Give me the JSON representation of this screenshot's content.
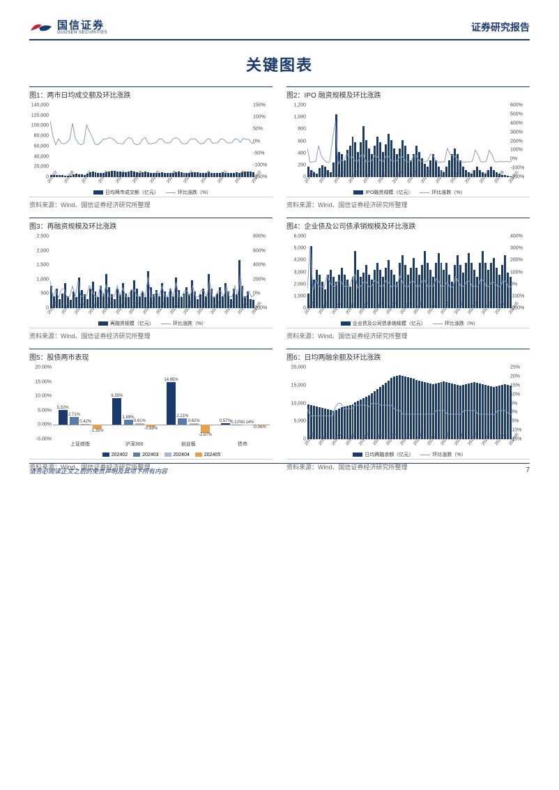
{
  "header": {
    "logo_cn": "国信证券",
    "logo_en": "GUOSEN SECURITIES",
    "report_type": "证券研究报告"
  },
  "page_title": "关键图表",
  "source_text": "资料来源：Wind、国信证券经济研究所整理",
  "footer": {
    "disclaimer": "请务必阅读正文之后的免责声明及其项下所有内容",
    "page_number": "7"
  },
  "colors": {
    "brand": "#1a3a6e",
    "line": "#8a9bb8",
    "bar_202402": "#1a3a6e",
    "bar_202403": "#5a7aa8",
    "bar_202404": "#a8b8d0",
    "bar_202405": "#e8a050"
  },
  "chart1": {
    "title": "图1：两市日均成交额及环比涨跌",
    "legend_bar": "日均两市成交额（亿元）",
    "legend_line": "环比涨跌（%）",
    "yl_ticks": [
      0,
      20000,
      40000,
      60000,
      80000,
      100000,
      120000,
      140000
    ],
    "yl_labels": [
      "0",
      "20,000",
      "40,000",
      "60,000",
      "80,000",
      "100,000",
      "120,000",
      "140,000"
    ],
    "yr_ticks": [
      -150,
      -100,
      -50,
      0,
      50,
      100,
      150
    ],
    "yr_labels": [
      "-150%",
      "-100%",
      "-50%",
      "0%",
      "50%",
      "100%",
      "150%"
    ],
    "x_labels": [
      "201802",
      "201808",
      "201902",
      "201908",
      "202002",
      "202008",
      "202102",
      "202108",
      "202202",
      "202208",
      "202302",
      "202308",
      "202402"
    ],
    "bars": [
      4200,
      4100,
      3900,
      3800,
      3500,
      3200,
      3000,
      3200,
      5800,
      6200,
      5500,
      4800,
      4200,
      7200,
      9800,
      11200,
      9500,
      8200,
      7800,
      8500,
      9200,
      10500,
      11800,
      12200,
      11500,
      10800,
      9800,
      10200,
      11500,
      12800,
      11200,
      9800,
      8500,
      9200,
      10500,
      9800,
      8800,
      8200,
      7800,
      8500,
      9200,
      8800,
      8200,
      7800,
      8500,
      9800,
      10500,
      9800,
      8800,
      8200,
      8800,
      9500,
      10200,
      9800,
      8800,
      8200,
      8800,
      9500,
      8800,
      8200,
      7800,
      8500,
      9200,
      8800,
      8200,
      7800,
      8500,
      9200,
      8800,
      9800,
      10500,
      11200,
      10500,
      9800
    ],
    "line": [
      85,
      20,
      -15,
      10,
      -8,
      -12,
      -5,
      8,
      75,
      12,
      -8,
      -15,
      -10,
      68,
      42,
      18,
      -12,
      -15,
      -5,
      10,
      8,
      15,
      12,
      5,
      -8,
      -10,
      -12,
      5,
      15,
      12,
      -10,
      -15,
      -12,
      8,
      15,
      -8,
      -12,
      -8,
      -5,
      10,
      8,
      -5,
      -8,
      -5,
      10,
      15,
      8,
      -8,
      -12,
      -8,
      8,
      10,
      8,
      -5,
      -12,
      -8,
      8,
      10,
      -8,
      -8,
      -5,
      10,
      8,
      -5,
      -8,
      -5,
      10,
      8,
      -5,
      12,
      8,
      8,
      -8,
      -8
    ]
  },
  "chart2": {
    "title": "图2：IPO 融资规模及环比涨跌",
    "legend_bar": "IPO融资规模（亿元）",
    "legend_line": "环比涨跌（%）",
    "yl_ticks": [
      0,
      200,
      400,
      600,
      800,
      1000,
      1200
    ],
    "yl_labels": [
      "0",
      "200",
      "400",
      "600",
      "800",
      "1,000",
      "1,200"
    ],
    "yr_ticks": [
      -200,
      -100,
      0,
      100,
      200,
      300,
      400,
      500,
      600
    ],
    "yr_labels": [
      "-200%",
      "-100%",
      "0%",
      "100%",
      "200%",
      "300%",
      "400%",
      "500%",
      "600%"
    ],
    "x_labels": [
      "201803",
      "201808",
      "201901",
      "201907",
      "201911",
      "202004",
      "202009",
      "202102",
      "202107",
      "202112",
      "202205",
      "202210",
      "202303",
      "202308",
      "202401"
    ],
    "bars": [
      180,
      120,
      80,
      60,
      150,
      200,
      180,
      120,
      80,
      250,
      1050,
      420,
      380,
      280,
      450,
      520,
      680,
      580,
      420,
      580,
      850,
      620,
      480,
      380,
      520,
      680,
      580,
      420,
      550,
      720,
      620,
      480,
      380,
      480,
      620,
      520,
      380,
      280,
      380,
      520,
      420,
      320,
      220,
      180,
      280,
      380,
      280,
      180,
      120,
      80,
      180,
      280,
      380,
      480,
      380,
      280,
      180,
      120,
      80,
      60,
      120,
      180,
      120,
      80,
      60,
      120,
      180,
      120,
      80,
      60,
      40,
      30,
      20,
      15
    ],
    "line": [
      120,
      -35,
      -30,
      -25,
      150,
      35,
      -10,
      -35,
      -30,
      220,
      420,
      -55,
      -10,
      -25,
      60,
      18,
      30,
      -15,
      -28,
      40,
      48,
      -28,
      -22,
      -20,
      38,
      30,
      -15,
      -28,
      30,
      32,
      -15,
      -22,
      -20,
      25,
      30,
      -15,
      -28,
      -25,
      35,
      38,
      -20,
      -25,
      -30,
      -18,
      55,
      38,
      -25,
      -35,
      -30,
      -30,
      120,
      55,
      35,
      25,
      -20,
      -25,
      -35,
      -30,
      -30,
      -25,
      100,
      50,
      -30,
      -30,
      -25,
      100,
      50,
      -30,
      -30,
      -25,
      -30,
      -25,
      -30,
      -25
    ]
  },
  "chart3": {
    "title": "图3：再融资规模及环比涨跌",
    "legend_bar": "再融资规模（亿元）",
    "legend_line": "环比涨跌（%）",
    "yl_ticks": [
      0,
      500,
      1000,
      1500,
      2000,
      2500
    ],
    "yl_labels": [
      "0",
      "500",
      "1,000",
      "1,500",
      "2,000",
      "2,500"
    ],
    "yr_ticks": [
      -200,
      0,
      200,
      400,
      600,
      800
    ],
    "yr_labels": [
      "-200%",
      "0%",
      "200%",
      "400%",
      "600%",
      "800%"
    ],
    "x_labels": [
      "201802",
      "201807",
      "201812",
      "201905",
      "201910",
      "202003",
      "202008",
      "202101",
      "202106",
      "202111",
      "202204",
      "202209",
      "202302",
      "202307",
      "202312",
      "202405"
    ],
    "bars": [
      780,
      420,
      680,
      320,
      520,
      880,
      420,
      280,
      580,
      380,
      1080,
      620,
      480,
      320,
      680,
      920,
      580,
      380,
      780,
      520,
      1180,
      720,
      480,
      320,
      680,
      480,
      880,
      520,
      380,
      620,
      980,
      680,
      420,
      580,
      380,
      1280,
      720,
      480,
      620,
      420,
      880,
      580,
      380,
      680,
      420,
      1080,
      620,
      380,
      520,
      720,
      480,
      980,
      580,
      320,
      480,
      680,
      420,
      1180,
      680,
      380,
      520,
      720,
      420,
      880,
      580,
      320,
      680,
      480,
      1680,
      780,
      420,
      580,
      320,
      280
    ],
    "line": [
      180,
      -45,
      62,
      -52,
      62,
      68,
      -52,
      -32,
      105,
      -35,
      185,
      -42,
      -22,
      -32,
      112,
      38,
      -38,
      -35,
      105,
      -32,
      128,
      -38,
      -32,
      -32,
      112,
      -28,
      82,
      -40,
      -28,
      62,
      58,
      -30,
      -38,
      38,
      -35,
      238,
      -42,
      -32,
      28,
      -32,
      108,
      -34,
      -35,
      78,
      -38,
      158,
      -42,
      -38,
      38,
      38,
      -32,
      105,
      -40,
      -44,
      48,
      42,
      -38,
      182,
      -42,
      -44,
      38,
      38,
      -42,
      108,
      -34,
      -44,
      112,
      -28,
      252,
      -54,
      -46,
      38,
      -44,
      -15
    ]
  },
  "chart4": {
    "title": "图4：企业债及公司债承销规模及环比涨跌",
    "legend_bar": "企业债及公司债承销规模（亿元）",
    "legend_line": "环比涨跌（%）",
    "yl_ticks": [
      0,
      1000,
      2000,
      3000,
      4000,
      5000,
      6000
    ],
    "yl_labels": [
      "0",
      "1,000",
      "2,000",
      "3,000",
      "4,000",
      "5,000",
      "6,000"
    ],
    "yr_ticks": [
      -200,
      -100,
      0,
      100,
      200,
      300,
      400
    ],
    "yr_labels": [
      "-200%",
      "-100%",
      "0%",
      "100%",
      "200%",
      "300%",
      "400%"
    ],
    "x_labels": [
      "201802",
      "201807",
      "201812",
      "201905",
      "201910",
      "202003",
      "202008",
      "202101",
      "202106",
      "202111",
      "202204",
      "202209",
      "202302",
      "202307",
      "202312",
      "202405"
    ],
    "bars": [
      1200,
      5200,
      2400,
      3200,
      2800,
      2200,
      1600,
      2800,
      3200,
      2600,
      2200,
      2800,
      3400,
      2800,
      2400,
      1800,
      2600,
      4800,
      3200,
      2600,
      3000,
      3600,
      2800,
      2400,
      3200,
      3800,
      3200,
      2600,
      3400,
      4000,
      3200,
      2800,
      2200,
      3800,
      4400,
      3600,
      2800,
      3400,
      4200,
      3400,
      2800,
      3600,
      4800,
      3800,
      3200,
      2600,
      3800,
      4600,
      3800,
      3200,
      3800,
      2800,
      2200,
      3600,
      4400,
      3600,
      3000,
      3800,
      4600,
      3800,
      3200,
      2600,
      3800,
      4800,
      3800,
      3200,
      3800,
      4200,
      3400,
      2800,
      3600,
      4400,
      3000,
      2600
    ],
    "line": [
      -40,
      320,
      -52,
      32,
      -12,
      -20,
      -28,
      75,
      15,
      -18,
      -15,
      28,
      22,
      -18,
      -15,
      -25,
      45,
      82,
      -32,
      -18,
      15,
      20,
      -22,
      -15,
      32,
      18,
      -15,
      -18,
      30,
      18,
      -20,
      -12,
      -22,
      72,
      15,
      -18,
      -22,
      22,
      25,
      -18,
      -18,
      28,
      32,
      -20,
      -15,
      -18,
      45,
      22,
      -18,
      -15,
      18,
      -25,
      -22,
      62,
      22,
      -18,
      -16,
      25,
      22,
      -18,
      -15,
      -18,
      45,
      28,
      -20,
      -15,
      18,
      12,
      -18,
      -18,
      28,
      22,
      -32,
      -15
    ]
  },
  "chart5": {
    "title": "图5：股债两市表现",
    "yl_ticks": [
      -5,
      0,
      5,
      10,
      15,
      20
    ],
    "yl_labels": [
      "-5.00%",
      "0.00%",
      "5.00%",
      "10.00%",
      "15.00%",
      "20.00%"
    ],
    "groups": [
      {
        "label": "上证综指",
        "vals": [
          5.32,
          2.71,
          0.42,
          -1.35
        ]
      },
      {
        "label": "沪深300",
        "vals": [
          9.35,
          1.89,
          0.61,
          -0.68
        ]
      },
      {
        "label": "创业板",
        "vals": [
          14.85,
          2.21,
          0.62,
          -2.87
        ]
      },
      {
        "label": "债市",
        "vals": [
          0.57,
          0.12,
          0.14,
          -0.06
        ]
      }
    ],
    "series": [
      "202402",
      "202403",
      "202404",
      "202405"
    ]
  },
  "chart6": {
    "title": "图6：日均两融余额及环比涨跌",
    "legend_bar": "日均两融余额（亿元）",
    "legend_line": "环比涨跌（%）",
    "yl_ticks": [
      0,
      5000,
      10000,
      15000,
      20000
    ],
    "yl_labels": [
      "0",
      "5,000",
      "10,000",
      "15,000",
      "20,000"
    ],
    "yr_ticks": [
      -15,
      -10,
      -5,
      0,
      5,
      10,
      15,
      20,
      25
    ],
    "yr_labels": [
      "-15%",
      "-10%",
      "-5%",
      "0%",
      "5%",
      "10%",
      "15%",
      "20%",
      "25%"
    ],
    "x_labels": [
      "201802",
      "201807",
      "201812",
      "201905",
      "201910",
      "202003",
      "202008",
      "202101",
      "202106",
      "202111",
      "202204",
      "202209",
      "202302",
      "202307",
      "202312",
      "202405"
    ],
    "bars": [
      9800,
      9600,
      9400,
      9200,
      9000,
      8800,
      8600,
      8400,
      8200,
      8000,
      8200,
      8600,
      9000,
      9200,
      9400,
      9600,
      9800,
      10200,
      10600,
      11000,
      11400,
      11800,
      12200,
      12800,
      13400,
      14000,
      14600,
      15200,
      15800,
      16400,
      17000,
      17400,
      17600,
      17800,
      17600,
      17400,
      17200,
      17000,
      16800,
      16600,
      16400,
      16200,
      16000,
      15800,
      15600,
      15400,
      15600,
      15800,
      16000,
      16200,
      16000,
      15800,
      15600,
      15400,
      15200,
      15000,
      15200,
      15400,
      15600,
      15800,
      16000,
      15800,
      15600,
      15400,
      15200,
      15000,
      14800,
      14600,
      14800,
      15000,
      15200,
      15400,
      15200,
      15000
    ],
    "line": [
      2,
      -2,
      -2,
      -2,
      -2,
      -2,
      -2,
      -2,
      -2,
      -2,
      3,
      5,
      5,
      2,
      2,
      2,
      2,
      4,
      4,
      4,
      4,
      4,
      3,
      5,
      5,
      5,
      4,
      4,
      4,
      4,
      4,
      2,
      1,
      1,
      -1,
      -1,
      -1,
      -1,
      -1,
      -1,
      -1,
      -1,
      -1,
      -1,
      -1,
      -1,
      1,
      1,
      1,
      1,
      -1,
      -1,
      -1,
      -1,
      -1,
      -1,
      1,
      1,
      1,
      1,
      1,
      -1,
      -1,
      -1,
      -1,
      -1,
      -1,
      -1,
      1,
      1,
      1,
      1,
      -1,
      -1
    ]
  }
}
